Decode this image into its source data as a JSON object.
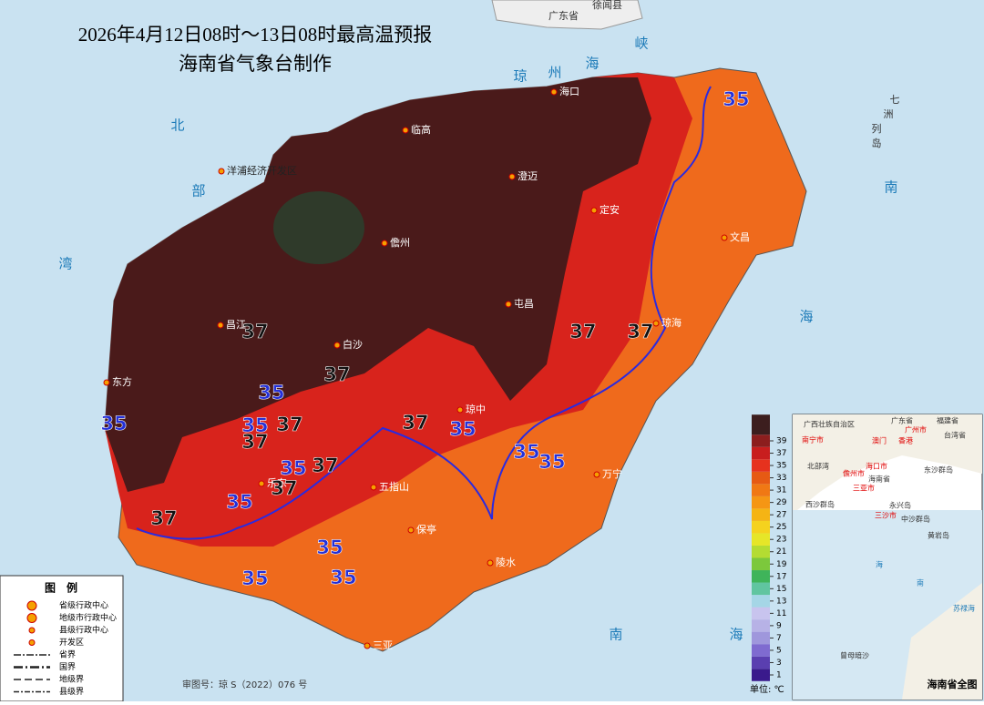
{
  "header": {
    "title": "2026年4月12日08时～13日08时最高温预报",
    "subtitle": "海南省气象台制作"
  },
  "places": [
    "海口",
    "临高",
    "澄迈",
    "定安",
    "文昌",
    "儋州",
    "屯昌",
    "琼海",
    "昌江",
    "白沙",
    "东方",
    "琼中",
    "乐东",
    "五指山",
    "保亭",
    "万宁",
    "陵水",
    "三亚",
    "洋浦经济开发区"
  ],
  "outside_labels": [
    "广东省",
    "徐闻县"
  ],
  "sea_labels": [
    "北",
    "部",
    "湾",
    "琼",
    "州",
    "海",
    "峡",
    "南",
    "海",
    "南",
    "海",
    "七",
    "洲",
    "列",
    "岛"
  ],
  "contours": [
    {
      "value": 37,
      "color": "#111111"
    },
    {
      "value": 37,
      "color": "#111111"
    },
    {
      "value": 37,
      "color": "#111111"
    },
    {
      "value": 37,
      "color": "#111111"
    },
    {
      "value": 37,
      "color": "#111111"
    },
    {
      "value": 37,
      "color": "#111111"
    },
    {
      "value": 37,
      "color": "#111111"
    },
    {
      "value": 37,
      "color": "#111111"
    },
    {
      "value": 37,
      "color": "#111111"
    },
    {
      "value": 37,
      "color": "#111111"
    },
    {
      "value": 35,
      "color": "#2430d8"
    },
    {
      "value": 35,
      "color": "#2430d8"
    },
    {
      "value": 35,
      "color": "#2430d8"
    },
    {
      "value": 35,
      "color": "#2430d8"
    },
    {
      "value": 35,
      "color": "#2430d8"
    },
    {
      "value": 35,
      "color": "#2430d8"
    },
    {
      "value": 35,
      "color": "#2430d8"
    },
    {
      "value": 35,
      "color": "#2430d8"
    },
    {
      "value": 35,
      "color": "#2430d8"
    },
    {
      "value": 35,
      "color": "#2430d8"
    },
    {
      "value": 35,
      "color": "#2430d8"
    },
    {
      "value": 35,
      "color": "#2430d8"
    }
  ],
  "colorbar": {
    "ticks": [
      1,
      3,
      5,
      7,
      9,
      11,
      13,
      15,
      17,
      19,
      21,
      23,
      25,
      27,
      29,
      31,
      33,
      35,
      37,
      39
    ],
    "colors": [
      "#3a1a8c",
      "#5a3fb0",
      "#7f6bd0",
      "#9f97dc",
      "#b7b2e6",
      "#c8c4ee",
      "#a5d6e6",
      "#60c5a0",
      "#3fb45a",
      "#7cc83c",
      "#b4dc32",
      "#e6e628",
      "#f5d21e",
      "#f5b414",
      "#f59614",
      "#f07814",
      "#e65a14",
      "#e6321e",
      "#c81e1e",
      "#8c1e1e",
      "#3c1e1e"
    ],
    "unit": "单位: ℃"
  },
  "legend": {
    "title": "图　例",
    "items": [
      "省级行政中心",
      "地级市行政中心",
      "县级行政中心",
      "开发区",
      "省界",
      "国界",
      "地级界",
      "县级界"
    ]
  },
  "footer": "审图号：琼 S（2022）076 号",
  "inset": {
    "title": "海南省全图",
    "labels": [
      "广西壮族自治区",
      "广东省",
      "福建省",
      "台湾省",
      "南宁市",
      "广州市",
      "澳门",
      "香港",
      "海口市",
      "北部湾",
      "海南省",
      "东沙群岛",
      "儋州市",
      "三亚市",
      "西沙群岛",
      "永兴岛",
      "三沙市",
      "中沙群岛",
      "黄岩岛",
      "海",
      "南",
      "苏禄海",
      "曾母暗沙"
    ]
  }
}
